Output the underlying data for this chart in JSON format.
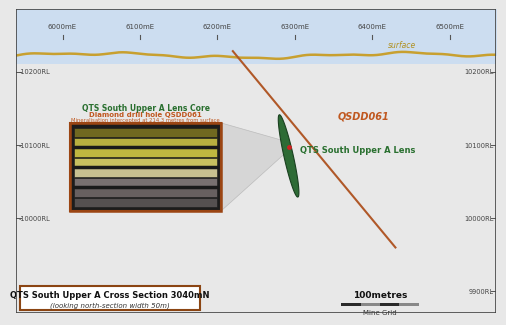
{
  "title": "QTS South Upper A Cross Section 3040mN",
  "subtitle": "(looking north-section width 50m)",
  "scale_label": "100metres",
  "scale_sublabel": "Mine Grid",
  "surface_label": "surface",
  "drill_hole_label": "QSDD061",
  "lens_label": "QTS South Upper A Lens",
  "core_title": "QTS South Upper A Lens Core",
  "core_subtitle": "Diamond drill hole QSDD061",
  "core_note": "Mineralisation intercepted at 214.3 metres from surface",
  "x_ticks": [
    "6000mE",
    "6100mE",
    "6200mE",
    "6300mE",
    "6400mE",
    "6500mE"
  ],
  "x_tick_pos": [
    6000,
    6100,
    6200,
    6300,
    6400,
    6500
  ],
  "y_ticks_left": [
    10200,
    10100,
    10000
  ],
  "y_ticks_right": [
    10200,
    10100,
    10000,
    9900
  ],
  "xlim": [
    5940,
    6560
  ],
  "ylim": [
    9870,
    10285
  ],
  "bg_color": "#e8e8e8",
  "top_strip_color": "#ccddf0",
  "surface_line_color": "#c8a030",
  "drill_line_color": "#b05828",
  "vein_color": "#2d6b35",
  "vein_edge_color": "#1a4020",
  "title_box_border": "#8b4513",
  "dot_color": "#cc2222",
  "text_color_green": "#2a7030",
  "text_color_orange": "#c05820",
  "text_color_gold": "#b09020",
  "core_bg": "#1a1a1a",
  "core_border": "#9b4513",
  "pointer_color": "#c8c8c8",
  "surface_fill": "#ccddf0",
  "label_color": "#444444",
  "tick_color": "#555555"
}
